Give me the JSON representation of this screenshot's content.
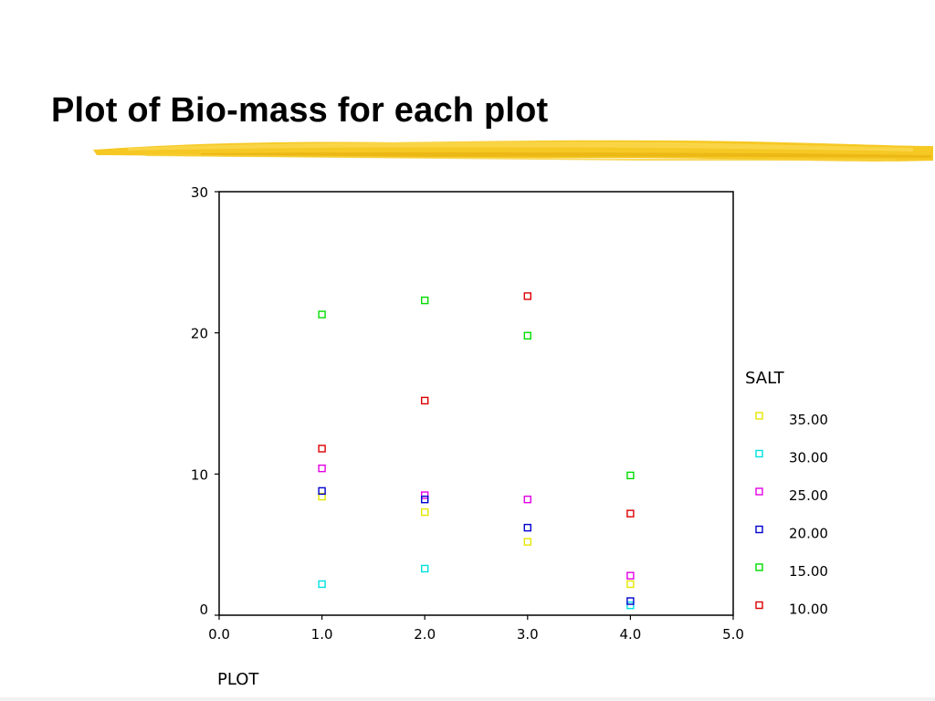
{
  "slide": {
    "title": "Plot of Bio-mass for each plot",
    "brush_color": "#f5c518"
  },
  "chart_data": {
    "type": "scatter",
    "title": "",
    "xlabel": "PLOT",
    "ylabel": "",
    "xlim": [
      0,
      5
    ],
    "ylim": [
      0,
      30
    ],
    "x_ticks": [
      "0.0",
      "1.0",
      "2.0",
      "3.0",
      "4.0",
      "5.0"
    ],
    "y_ticks": [
      "0",
      "10",
      "20",
      "30"
    ],
    "grid": false,
    "legend": {
      "title": "SALT",
      "position": "right"
    },
    "series": [
      {
        "name": "35.00",
        "color": "#e6e600",
        "x": [
          1,
          2,
          3,
          4
        ],
        "y": [
          8.4,
          7.3,
          5.2,
          2.2
        ]
      },
      {
        "name": "30.00",
        "color": "#00e0e0",
        "x": [
          1,
          2,
          4
        ],
        "y": [
          2.2,
          3.3,
          0.7
        ]
      },
      {
        "name": "25.00",
        "color": "#e600e6",
        "x": [
          1,
          2,
          3,
          4
        ],
        "y": [
          10.4,
          8.5,
          8.2,
          2.8
        ]
      },
      {
        "name": "20.00",
        "color": "#0000cc",
        "x": [
          1,
          2,
          3,
          4
        ],
        "y": [
          8.8,
          8.2,
          6.2,
          1.0
        ]
      },
      {
        "name": "15.00",
        "color": "#00dd00",
        "x": [
          1,
          2,
          3,
          4
        ],
        "y": [
          21.3,
          22.3,
          19.8,
          9.9
        ]
      },
      {
        "name": "10.00",
        "color": "#dd0000",
        "x": [
          1,
          2,
          3,
          4
        ],
        "y": [
          11.8,
          15.2,
          22.6,
          7.2
        ]
      }
    ]
  }
}
